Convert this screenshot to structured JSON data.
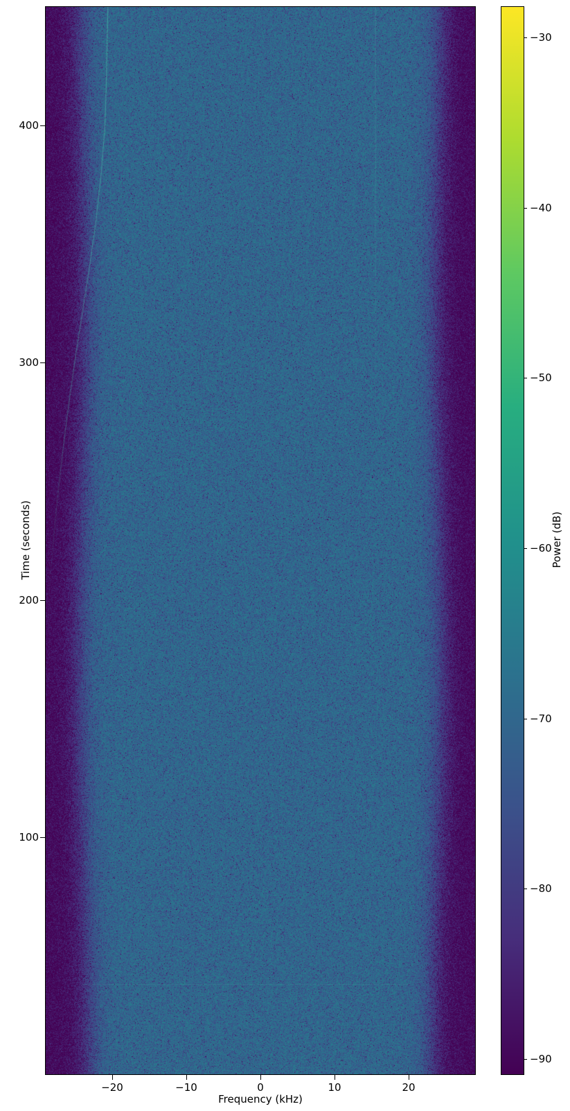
{
  "page": {
    "background": "#ffffff"
  },
  "chart_data": {
    "type": "heatmap",
    "subtype": "spectrogram-waterfall",
    "title": "",
    "xlabel": "Frequency (kHz)",
    "ylabel": "Time (seconds)",
    "colorbar_label": "Power (dB)",
    "xlim": [
      -29,
      29
    ],
    "ylim": [
      0,
      450
    ],
    "clim": [
      -90.9,
      -28.2
    ],
    "x_ticks": [
      -20,
      -10,
      0,
      10,
      20
    ],
    "y_ticks": [
      100,
      200,
      300,
      400
    ],
    "colorbar_ticks": [
      -30,
      -40,
      -50,
      -60,
      -70,
      -80,
      -90
    ],
    "colormap": "viridis",
    "grid": false,
    "viridis_stops": [
      {
        "pos": 0.0,
        "hex": "#440154"
      },
      {
        "pos": 0.125,
        "hex": "#472d7b"
      },
      {
        "pos": 0.25,
        "hex": "#3b528b"
      },
      {
        "pos": 0.375,
        "hex": "#2c728e"
      },
      {
        "pos": 0.5,
        "hex": "#21918c"
      },
      {
        "pos": 0.625,
        "hex": "#28ae80"
      },
      {
        "pos": 0.75,
        "hex": "#5ec962"
      },
      {
        "pos": 0.875,
        "hex": "#addc30"
      },
      {
        "pos": 1.0,
        "hex": "#fde725"
      }
    ],
    "noise_background": {
      "passband_floor_db": -70.5,
      "stopband_floor_db": -90.5,
      "passband_edge_khz": 23.8,
      "transition_width_khz": 1.0,
      "speckle_strength": 0.8
    },
    "features": {
      "doppler_chirp": {
        "description": "faint narrowband carrier drifting from -28.6 kHz to -20.6 kHz, flattening near top, fading below t=230 s",
        "color_rgba": [
          70,
          190,
          168
        ],
        "points_time_freq": [
          [
            200,
            -28.6
          ],
          [
            220,
            -28.1
          ],
          [
            240,
            -27.5
          ],
          [
            260,
            -26.8
          ],
          [
            280,
            -26.0
          ],
          [
            300,
            -25.1
          ],
          [
            320,
            -24.1
          ],
          [
            340,
            -23.1
          ],
          [
            360,
            -22.2
          ],
          [
            380,
            -21.5
          ],
          [
            400,
            -21.0
          ],
          [
            420,
            -20.8
          ],
          [
            435,
            -20.7
          ],
          [
            450,
            -20.6
          ]
        ]
      },
      "vertical_trace": {
        "description": "very faint vertical carrier line in upper half",
        "freq_khz": 15.5,
        "time_start": 285,
        "time_end": 450,
        "color_rgba": [
          80,
          195,
          175
        ]
      },
      "horizontal_trace": {
        "description": "very faint horizontal streak near bottom",
        "time_s": 38,
        "freq_start": -24,
        "freq_end": 20,
        "color_rgba": [
          80,
          195,
          175
        ]
      }
    }
  }
}
